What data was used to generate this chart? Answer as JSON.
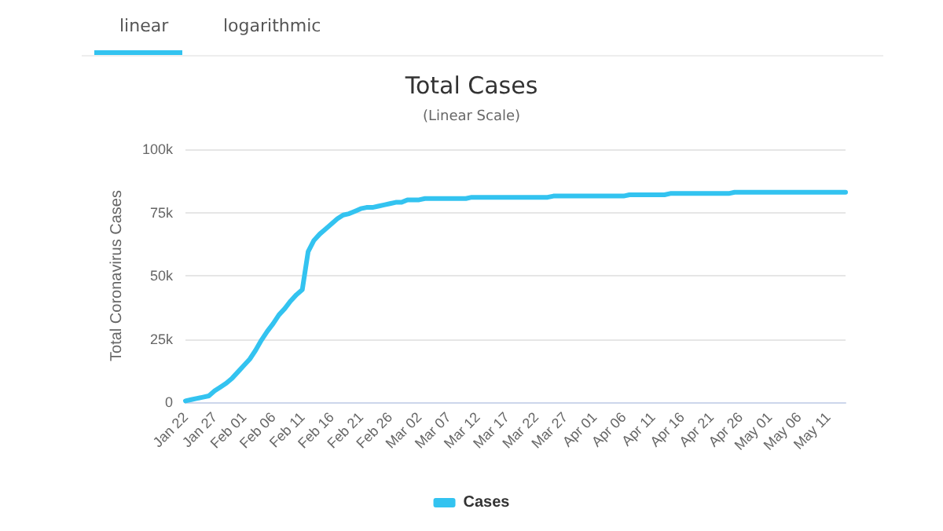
{
  "chart_data": {
    "type": "line",
    "title": "Total Cases",
    "subtitle": "(Linear Scale)",
    "ylabel": "Total Coronavirus Cases",
    "annotations": [
      "linear",
      "logarithmic"
    ],
    "categories": [
      "Jan 22",
      null,
      null,
      null,
      null,
      "Jan 27",
      null,
      null,
      null,
      null,
      "Feb 01",
      null,
      null,
      null,
      null,
      "Feb 06",
      null,
      null,
      null,
      null,
      "Feb 11",
      null,
      null,
      null,
      null,
      "Feb 16",
      null,
      null,
      null,
      null,
      "Feb 21",
      null,
      null,
      null,
      null,
      "Feb 26",
      null,
      null,
      null,
      null,
      "Mar 02",
      null,
      null,
      null,
      null,
      "Mar 07",
      null,
      null,
      null,
      null,
      "Mar 12",
      null,
      null,
      null,
      null,
      "Mar 17",
      null,
      null,
      null,
      null,
      "Mar 22",
      null,
      null,
      null,
      null,
      "Mar 27",
      null,
      null,
      null,
      null,
      "Apr 01",
      null,
      null,
      null,
      null,
      "Apr 06",
      null,
      null,
      null,
      null,
      "Apr 11",
      null,
      null,
      null,
      null,
      "Apr 16",
      null,
      null,
      null,
      null,
      "Apr 21",
      null,
      null,
      null,
      null,
      "Apr 26",
      null,
      null,
      null,
      null,
      "May 01",
      null,
      null,
      null,
      null,
      "May 06",
      null,
      null,
      null,
      null,
      "May 11",
      null,
      null,
      null
    ],
    "series": [
      {
        "name": "Cases",
        "color": "#33c3f0",
        "values": [
          500,
          1000,
          1500,
          2000,
          2500,
          4500,
          6000,
          7500,
          9500,
          12000,
          14500,
          17000,
          20500,
          24500,
          28000,
          31000,
          34500,
          37000,
          40000,
          42500,
          44500,
          59500,
          64000,
          66500,
          68500,
          70500,
          72500,
          74000,
          74500,
          75500,
          76500,
          77000,
          77000,
          77500,
          78000,
          78500,
          79000,
          79000,
          80000,
          80000,
          80000,
          80500,
          80500,
          80500,
          80500,
          80500,
          80500,
          80500,
          80500,
          81000,
          81000,
          81000,
          81000,
          81000,
          81000,
          81000,
          81000,
          81000,
          81000,
          81000,
          81000,
          81000,
          81000,
          81500,
          81500,
          81500,
          81500,
          81500,
          81500,
          81500,
          81500,
          81500,
          81500,
          81500,
          81500,
          81500,
          82000,
          82000,
          82000,
          82000,
          82000,
          82000,
          82000,
          82500,
          82500,
          82500,
          82500,
          82500,
          82500,
          82500,
          82500,
          82500,
          82500,
          82500,
          83000,
          83000,
          83000,
          83000,
          83000,
          83000,
          83000,
          83000,
          83000,
          83000,
          83000,
          83000,
          83000,
          83000,
          83000,
          83000,
          83000,
          83000,
          83000,
          83000
        ]
      }
    ],
    "ylim": [
      0,
      100000
    ],
    "yticks": [
      0,
      {
        "value": 25000,
        "label": "25k"
      },
      {
        "value": 50000,
        "label": "50k"
      },
      {
        "value": 75000,
        "label": "75k"
      },
      {
        "value": 100000,
        "label": "100k"
      }
    ],
    "grid": "y",
    "legend": "bottom",
    "marker": "none",
    "line_style": "solid"
  }
}
